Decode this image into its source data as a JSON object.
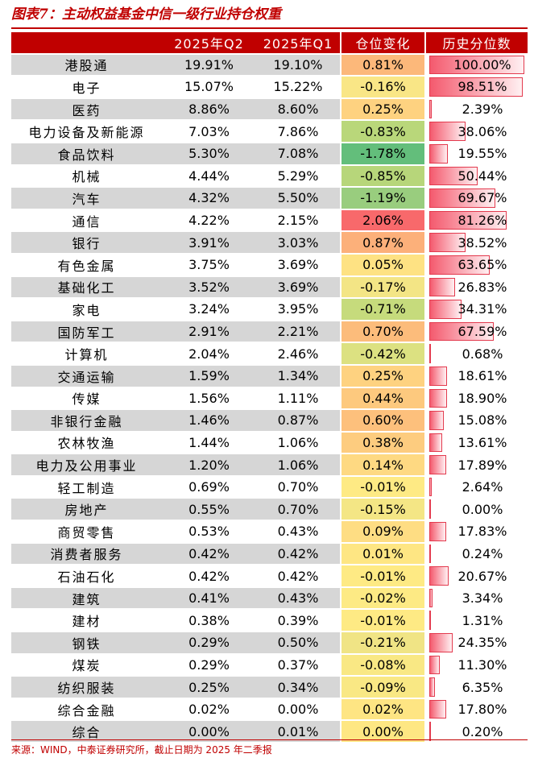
{
  "title": "图表7：主动权益基金中信一级行业持仓权重",
  "headers": [
    "",
    "2025年Q2",
    "2025年Q1",
    "仓位变化",
    "历史分位数"
  ],
  "rows": [
    {
      "industry": "港股通",
      "q2": "19.91%",
      "q1": "19.10%",
      "change": "0.81%",
      "change_color": "#fcb87a",
      "pct_label": "100.00%",
      "pct": 100.0
    },
    {
      "industry": "电子",
      "q2": "15.07%",
      "q1": "15.22%",
      "change": "-0.16%",
      "change_color": "#f9e686",
      "pct_label": "98.51%",
      "pct": 98.51
    },
    {
      "industry": "医药",
      "q2": "8.86%",
      "q1": "8.60%",
      "change": "0.25%",
      "change_color": "#fed280",
      "pct_label": "2.39%",
      "pct": 2.39
    },
    {
      "industry": "电力设备及新能源",
      "q2": "7.03%",
      "q1": "7.86%",
      "change": "-0.83%",
      "change_color": "#b9d77a",
      "pct_label": "38.06%",
      "pct": 38.06
    },
    {
      "industry": "食品饮料",
      "q2": "5.30%",
      "q1": "7.08%",
      "change": "-1.78%",
      "change_color": "#63be7b",
      "pct_label": "19.55%",
      "pct": 19.55
    },
    {
      "industry": "机械",
      "q2": "4.44%",
      "q1": "5.29%",
      "change": "-0.85%",
      "change_color": "#b7d67a",
      "pct_label": "50.44%",
      "pct": 50.44
    },
    {
      "industry": "汽车",
      "q2": "4.32%",
      "q1": "5.50%",
      "change": "-1.19%",
      "change_color": "#99cd7e",
      "pct_label": "69.67%",
      "pct": 69.67
    },
    {
      "industry": "通信",
      "q2": "4.22%",
      "q1": "2.15%",
      "change": "2.06%",
      "change_color": "#f8696b",
      "pct_label": "81.26%",
      "pct": 81.26
    },
    {
      "industry": "银行",
      "q2": "3.91%",
      "q1": "3.03%",
      "change": "0.87%",
      "change_color": "#fcb07a",
      "pct_label": "38.52%",
      "pct": 38.52
    },
    {
      "industry": "有色金属",
      "q2": "3.75%",
      "q1": "3.69%",
      "change": "0.05%",
      "change_color": "#fee283",
      "pct_label": "63.65%",
      "pct": 63.65
    },
    {
      "industry": "基础化工",
      "q2": "3.52%",
      "q1": "3.69%",
      "change": "-0.17%",
      "change_color": "#f3e585",
      "pct_label": "26.83%",
      "pct": 26.83
    },
    {
      "industry": "家电",
      "q2": "3.24%",
      "q1": "3.95%",
      "change": "-0.71%",
      "change_color": "#c6db7c",
      "pct_label": "34.31%",
      "pct": 34.31
    },
    {
      "industry": "国防军工",
      "q2": "2.91%",
      "q1": "2.21%",
      "change": "0.70%",
      "change_color": "#fcbc7b",
      "pct_label": "67.59%",
      "pct": 67.59
    },
    {
      "industry": "计算机",
      "q2": "2.04%",
      "q1": "2.46%",
      "change": "-0.42%",
      "change_color": "#dce181",
      "pct_label": "0.68%",
      "pct": 0.68
    },
    {
      "industry": "交通运输",
      "q2": "1.59%",
      "q1": "1.34%",
      "change": "0.25%",
      "change_color": "#fed280",
      "pct_label": "18.61%",
      "pct": 18.61
    },
    {
      "industry": "传媒",
      "q2": "1.56%",
      "q1": "1.11%",
      "change": "0.44%",
      "change_color": "#fdc97e",
      "pct_label": "18.90%",
      "pct": 18.9
    },
    {
      "industry": "非银行金融",
      "q2": "1.46%",
      "q1": "0.87%",
      "change": "0.60%",
      "change_color": "#fdc07c",
      "pct_label": "15.08%",
      "pct": 15.08
    },
    {
      "industry": "农林牧渔",
      "q2": "1.44%",
      "q1": "1.06%",
      "change": "0.38%",
      "change_color": "#fdcc7f",
      "pct_label": "13.61%",
      "pct": 13.61
    },
    {
      "industry": "电力及公用事业",
      "q2": "1.20%",
      "q1": "1.06%",
      "change": "0.14%",
      "change_color": "#fed982",
      "pct_label": "17.89%",
      "pct": 17.89
    },
    {
      "industry": "轻工制造",
      "q2": "0.69%",
      "q1": "0.70%",
      "change": "-0.01%",
      "change_color": "#feea84",
      "pct_label": "2.64%",
      "pct": 2.64
    },
    {
      "industry": "房地产",
      "q2": "0.55%",
      "q1": "0.70%",
      "change": "-0.15%",
      "change_color": "#f4e685",
      "pct_label": "0.00%",
      "pct": 0.0
    },
    {
      "industry": "商贸零售",
      "q2": "0.53%",
      "q1": "0.43%",
      "change": "0.09%",
      "change_color": "#fedd83",
      "pct_label": "17.83%",
      "pct": 17.83
    },
    {
      "industry": "消费者服务",
      "q2": "0.42%",
      "q1": "0.42%",
      "change": "0.01%",
      "change_color": "#fee683",
      "pct_label": "0.24%",
      "pct": 0.24
    },
    {
      "industry": "石油石化",
      "q2": "0.42%",
      "q1": "0.42%",
      "change": "-0.01%",
      "change_color": "#feea84",
      "pct_label": "20.67%",
      "pct": 20.67
    },
    {
      "industry": "建筑",
      "q2": "0.41%",
      "q1": "0.43%",
      "change": "-0.02%",
      "change_color": "#fdea84",
      "pct_label": "3.34%",
      "pct": 3.34
    },
    {
      "industry": "建材",
      "q2": "0.38%",
      "q1": "0.39%",
      "change": "-0.01%",
      "change_color": "#feea84",
      "pct_label": "1.31%",
      "pct": 1.31
    },
    {
      "industry": "钢铁",
      "q2": "0.29%",
      "q1": "0.50%",
      "change": "-0.21%",
      "change_color": "#f0e485",
      "pct_label": "24.35%",
      "pct": 24.35
    },
    {
      "industry": "煤炭",
      "q2": "0.29%",
      "q1": "0.37%",
      "change": "-0.08%",
      "change_color": "#f9e884",
      "pct_label": "11.30%",
      "pct": 11.3
    },
    {
      "industry": "纺织服装",
      "q2": "0.25%",
      "q1": "0.34%",
      "change": "-0.09%",
      "change_color": "#f9e884",
      "pct_label": "6.35%",
      "pct": 6.35
    },
    {
      "industry": "综合金融",
      "q2": "0.02%",
      "q1": "0.00%",
      "change": "0.02%",
      "change_color": "#fee583",
      "pct_label": "17.80%",
      "pct": 17.8
    },
    {
      "industry": "综合",
      "q2": "0.00%",
      "q1": "0.01%",
      "change": "0.00%",
      "change_color": "#fee783",
      "pct_label": "0.20%",
      "pct": 0.2
    }
  ],
  "source": "来源：WIND，中泰证券研究所，截止日期为 2025 年二季报"
}
